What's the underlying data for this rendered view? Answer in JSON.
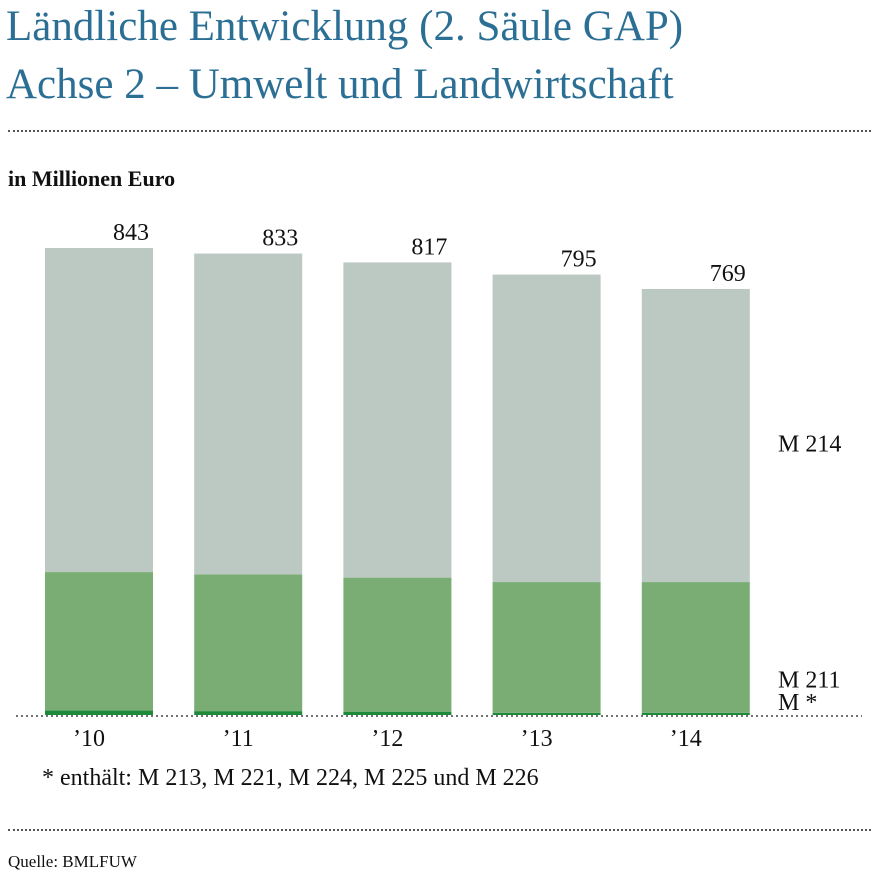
{
  "title_line1": "Ländliche Entwicklung (2. Säule GAP)",
  "title_line2": "Achse 2 – Umwelt und Landwirtschaft",
  "unit_label": "in Millionen Euro",
  "footnote": "* enthält: M 213, M 221, M 224, M 225 und M 226",
  "source": "Quelle: BMLFUW",
  "colors": {
    "title": "#2c6f95",
    "m214": "#bcc8c2",
    "m211": "#7aad74",
    "m_other": "#1d8a3a"
  },
  "chart_data": {
    "type": "bar",
    "stacked": true,
    "categories": [
      "’10",
      "’11",
      "’12",
      "’13",
      "’14"
    ],
    "series": [
      {
        "name": "M *",
        "values": [
          8,
          7,
          6,
          4,
          4
        ]
      },
      {
        "name": "M 211",
        "values": [
          250,
          247,
          242,
          236,
          236
        ]
      },
      {
        "name": "M 214",
        "values": [
          585,
          579,
          569,
          555,
          529
        ]
      }
    ],
    "totals": [
      843,
      833,
      817,
      795,
      769
    ],
    "ylim": [
      0,
      843
    ],
    "grid": false
  }
}
